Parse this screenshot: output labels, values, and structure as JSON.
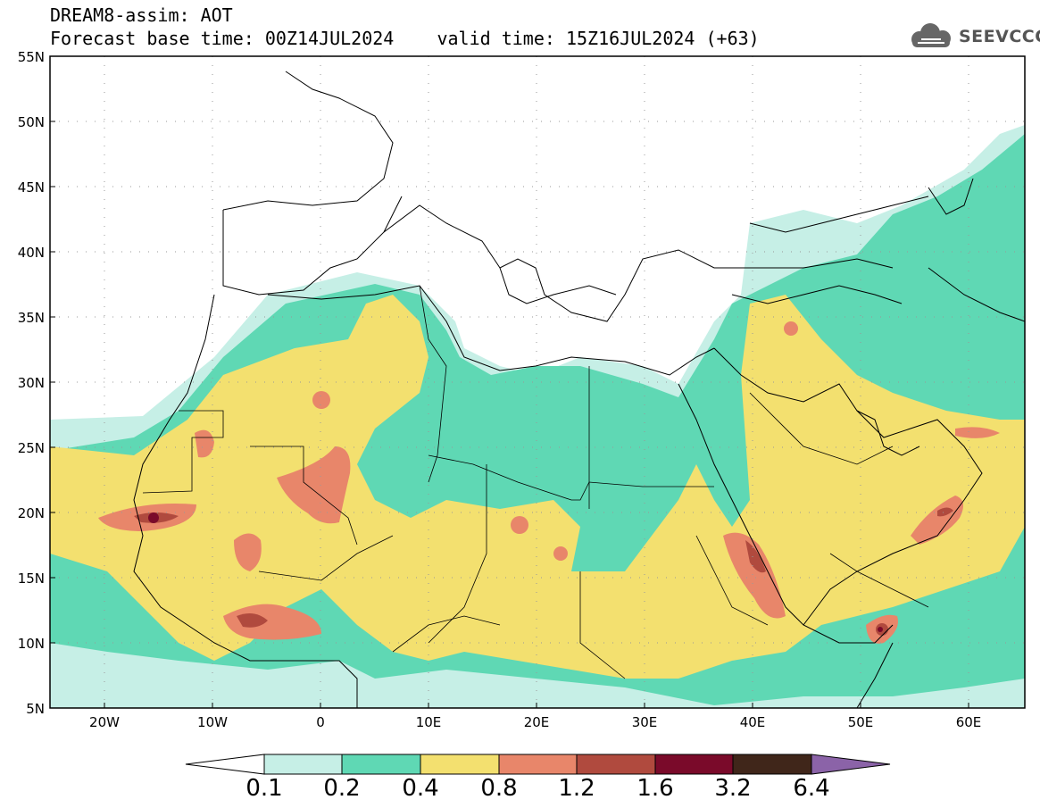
{
  "header": {
    "title_line1": "DREAM8-assim: AOT",
    "title_line2": "Forecast base time: 00Z14JUL2024    valid time: 15Z16JUL2024 (+63)",
    "logo_text": "SEEVCCC",
    "logo_icon": "cloud-icon"
  },
  "map": {
    "lat_labels": [
      "55N",
      "50N",
      "45N",
      "40N",
      "35N",
      "30N",
      "25N",
      "20N",
      "15N",
      "10N",
      "5N"
    ],
    "lon_labels": [
      "20W",
      "10W",
      "0",
      "10E",
      "20E",
      "30E",
      "40E",
      "50E",
      "60E"
    ],
    "lon_range": [
      -25,
      65
    ],
    "lat_range": [
      5,
      55
    ]
  },
  "legend": {
    "levels": [
      "0.1",
      "0.2",
      "0.4",
      "0.8",
      "1.2",
      "1.6",
      "3.2",
      "6.4"
    ],
    "colors": [
      "#ffffff",
      "#c6efe6",
      "#5fd8b4",
      "#f3e06f",
      "#e8866a",
      "#b04a3e",
      "#7a0a2a",
      "#40261a",
      "#8b63a8"
    ]
  },
  "colors": {
    "low": "#c6efe6",
    "mid": "#5fd8b4",
    "high": "#f3e06f",
    "veryhigh": "#e8866a",
    "extreme": "#b04a3e"
  }
}
